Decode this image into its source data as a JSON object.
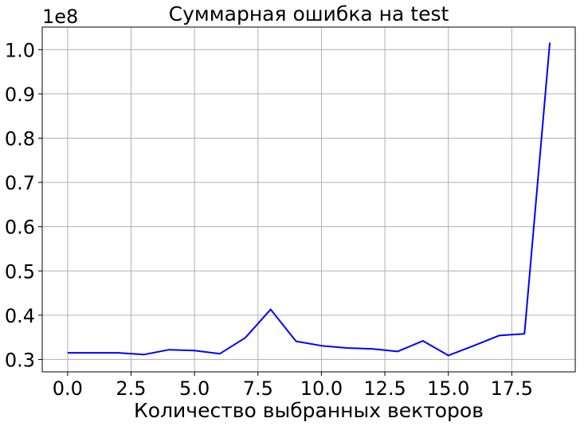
{
  "chart_data": {
    "type": "line",
    "title": "Суммарная ошибка на test",
    "xlabel": "Количество выбранных векторов",
    "ylabel": "",
    "y_offset_label": "1e8",
    "xlim": [
      -1,
      20
    ],
    "ylim": [
      0.272,
      1.051
    ],
    "x_ticks": [
      0.0,
      2.5,
      5.0,
      7.5,
      10.0,
      12.5,
      15.0,
      17.5
    ],
    "x_tick_labels": [
      "0.0",
      "2.5",
      "5.0",
      "7.5",
      "10.0",
      "12.5",
      "15.0",
      "17.5"
    ],
    "y_ticks": [
      0.3,
      0.4,
      0.5,
      0.6,
      0.7,
      0.8,
      0.9,
      1.0
    ],
    "y_tick_labels": [
      "0.3",
      "0.4",
      "0.5",
      "0.6",
      "0.7",
      "0.8",
      "0.9",
      "1.0"
    ],
    "grid": true,
    "series": [
      {
        "color": "#0000ff",
        "x": [
          0,
          1,
          2,
          3,
          4,
          5,
          6,
          7,
          8,
          9,
          10,
          11,
          12,
          13,
          14,
          15,
          16,
          17,
          18,
          19
        ],
        "y": [
          0.315,
          0.315,
          0.315,
          0.311,
          0.322,
          0.32,
          0.313,
          0.349,
          0.413,
          0.341,
          0.331,
          0.326,
          0.324,
          0.318,
          0.342,
          0.309,
          0.331,
          0.354,
          0.358,
          1.016
        ]
      }
    ]
  }
}
